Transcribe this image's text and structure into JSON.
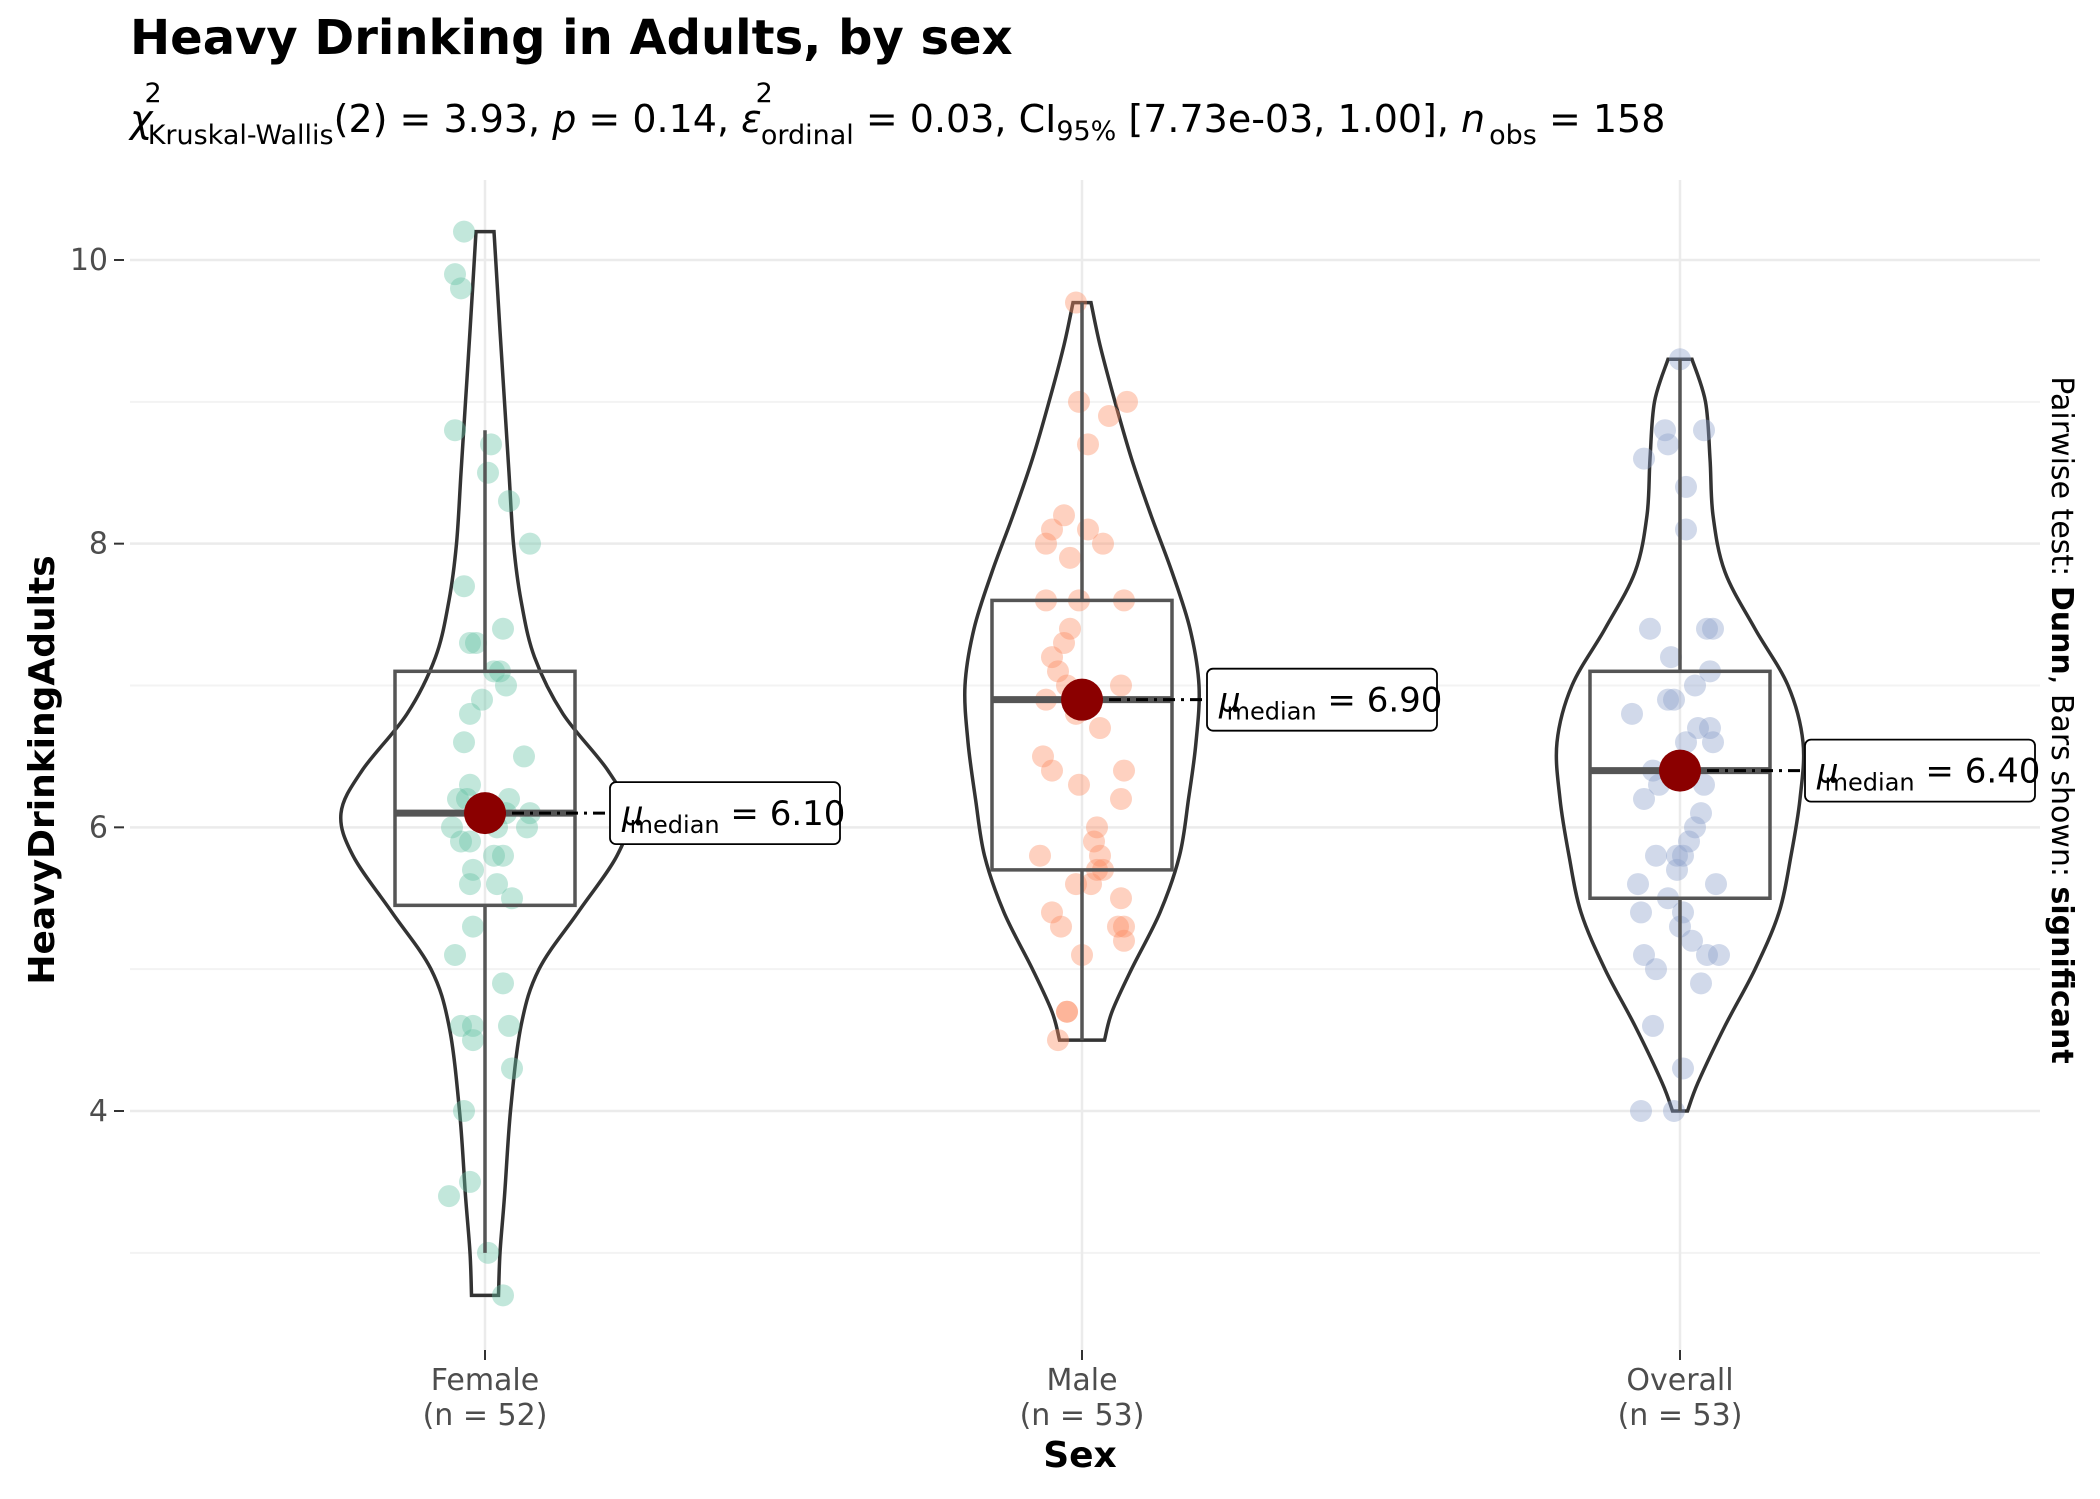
{
  "chart_data": {
    "type": "violin-box",
    "title": "Heavy Drinking in Adults, by sex",
    "subtitle": {
      "stat_symbol": "χ",
      "stat_sup": "2",
      "stat_sub": "Kruskal-Wallis",
      "stat_rest": "(2) = 3.93, ",
      "p_symbol": "p",
      "p_rest": " = 0.14, ",
      "eps_symbol": "ε",
      "eps_sup": "2",
      "eps_sub": "ordinal",
      "eps_rest": " = 0.03, CI",
      "ci_sub": "95%",
      "ci_rest": " [7.73e-03, 1.00], ",
      "n_symbol": "n",
      "n_sub": "obs",
      "n_rest": " = 158"
    },
    "xlabel": "Sex",
    "ylabel": "HeavyDrinkingAdults",
    "ylim": [
      2.45,
      10.45
    ],
    "yticks": [
      4,
      6,
      8,
      10
    ],
    "caption": {
      "prefix": "Pairwise test: ",
      "test": "Dunn",
      "middle": ", Bars shown: ",
      "bars": "significant"
    },
    "median_label_symbol": "μ",
    "median_label_sub": "median",
    "groups": [
      {
        "name": "Female",
        "n_label": "(n = 52)",
        "color": "#66c2a5",
        "median": 6.1,
        "median_text": " = 6.10",
        "q1": 5.45,
        "q3": 7.1,
        "whisker_low": 3.0,
        "whisker_high": 8.8,
        "violin_min": 2.7,
        "violin_max": 10.2,
        "violin_profile": [
          [
            2.7,
            0.09
          ],
          [
            3.0,
            0.1
          ],
          [
            3.4,
            0.13
          ],
          [
            4.0,
            0.17
          ],
          [
            4.6,
            0.24
          ],
          [
            5.0,
            0.36
          ],
          [
            5.4,
            0.62
          ],
          [
            5.8,
            0.88
          ],
          [
            6.1,
            0.96
          ],
          [
            6.4,
            0.82
          ],
          [
            6.8,
            0.52
          ],
          [
            7.2,
            0.33
          ],
          [
            7.6,
            0.24
          ],
          [
            8.0,
            0.19
          ],
          [
            8.5,
            0.16
          ],
          [
            9.0,
            0.13
          ],
          [
            9.5,
            0.1
          ],
          [
            10.2,
            0.06
          ]
        ],
        "points": [
          [
            -0.07,
            10.2
          ],
          [
            -0.1,
            9.9
          ],
          [
            -0.08,
            9.8
          ],
          [
            -0.1,
            8.8
          ],
          [
            0.02,
            8.7
          ],
          [
            0.01,
            8.5
          ],
          [
            0.08,
            8.3
          ],
          [
            0.15,
            8.0
          ],
          [
            -0.07,
            7.7
          ],
          [
            0.06,
            7.4
          ],
          [
            -0.03,
            7.3
          ],
          [
            -0.05,
            7.3
          ],
          [
            0.05,
            7.1
          ],
          [
            0.03,
            7.1
          ],
          [
            0.07,
            7.0
          ],
          [
            -0.01,
            6.9
          ],
          [
            -0.05,
            6.8
          ],
          [
            -0.07,
            6.6
          ],
          [
            0.13,
            6.5
          ],
          [
            -0.05,
            6.3
          ],
          [
            -0.09,
            6.2
          ],
          [
            -0.06,
            6.2
          ],
          [
            0.08,
            6.2
          ],
          [
            0.07,
            6.1
          ],
          [
            0.15,
            6.1
          ],
          [
            0.02,
            6.1
          ],
          [
            -0.11,
            6.0
          ],
          [
            0.04,
            6.0
          ],
          [
            0.14,
            6.0
          ],
          [
            -0.05,
            5.9
          ],
          [
            -0.08,
            5.9
          ],
          [
            0.03,
            5.8
          ],
          [
            0.06,
            5.8
          ],
          [
            -0.04,
            5.7
          ],
          [
            0.04,
            5.6
          ],
          [
            -0.05,
            5.6
          ],
          [
            0.09,
            5.5
          ],
          [
            -0.04,
            5.3
          ],
          [
            -0.1,
            5.1
          ],
          [
            0.06,
            4.9
          ],
          [
            -0.08,
            4.6
          ],
          [
            -0.04,
            4.6
          ],
          [
            0.08,
            4.6
          ],
          [
            -0.04,
            4.5
          ],
          [
            0.09,
            4.3
          ],
          [
            -0.07,
            4.0
          ],
          [
            -0.12,
            3.4
          ],
          [
            -0.05,
            3.5
          ],
          [
            0.01,
            3.0
          ],
          [
            0.06,
            2.7
          ]
        ]
      },
      {
        "name": "Male",
        "n_label": "(n = 53)",
        "color": "#fc8d62",
        "median": 6.9,
        "median_text": " = 6.90",
        "q1": 5.7,
        "q3": 7.6,
        "whisker_low": 4.5,
        "whisker_high": 9.7,
        "violin_min": 4.5,
        "violin_max": 9.7,
        "violin_profile": [
          [
            4.5,
            0.15
          ],
          [
            4.7,
            0.2
          ],
          [
            5.0,
            0.33
          ],
          [
            5.4,
            0.52
          ],
          [
            5.8,
            0.65
          ],
          [
            6.2,
            0.71
          ],
          [
            6.6,
            0.76
          ],
          [
            7.0,
            0.78
          ],
          [
            7.4,
            0.72
          ],
          [
            7.8,
            0.6
          ],
          [
            8.2,
            0.46
          ],
          [
            8.6,
            0.33
          ],
          [
            9.0,
            0.22
          ],
          [
            9.4,
            0.12
          ],
          [
            9.7,
            0.06
          ]
        ],
        "points": [
          [
            -0.02,
            9.7
          ],
          [
            -0.01,
            9.0
          ],
          [
            0.09,
            8.9
          ],
          [
            0.15,
            9.0
          ],
          [
            0.02,
            8.7
          ],
          [
            -0.06,
            8.2
          ],
          [
            -0.1,
            8.1
          ],
          [
            0.02,
            8.1
          ],
          [
            -0.12,
            8.0
          ],
          [
            0.07,
            8.0
          ],
          [
            -0.04,
            7.9
          ],
          [
            -0.12,
            7.6
          ],
          [
            -0.01,
            7.6
          ],
          [
            0.14,
            7.6
          ],
          [
            -0.04,
            7.4
          ],
          [
            -0.06,
            7.3
          ],
          [
            -0.08,
            7.1
          ],
          [
            -0.1,
            7.2
          ],
          [
            -0.05,
            7.0
          ],
          [
            0.13,
            7.0
          ],
          [
            -0.12,
            6.9
          ],
          [
            -0.02,
            6.8
          ],
          [
            0.06,
            6.7
          ],
          [
            0.14,
            6.4
          ],
          [
            -0.13,
            6.5
          ],
          [
            -0.1,
            6.4
          ],
          [
            -0.01,
            6.3
          ],
          [
            0.13,
            6.2
          ],
          [
            0.05,
            6.0
          ],
          [
            0.04,
            5.9
          ],
          [
            0.06,
            5.8
          ],
          [
            -0.14,
            5.8
          ],
          [
            0.07,
            5.7
          ],
          [
            0.05,
            5.7
          ],
          [
            -0.02,
            5.6
          ],
          [
            0.03,
            5.6
          ],
          [
            0.13,
            5.5
          ],
          [
            -0.1,
            5.4
          ],
          [
            -0.07,
            5.3
          ],
          [
            0.14,
            5.3
          ],
          [
            0.12,
            5.3
          ],
          [
            0.14,
            5.2
          ],
          [
            0.0,
            5.1
          ],
          [
            -0.05,
            4.7
          ],
          [
            -0.05,
            4.7
          ],
          [
            -0.08,
            4.5
          ]
        ]
      },
      {
        "name": "Overall",
        "n_label": "(n = 53)",
        "color": "#8da0cb",
        "median": 6.4,
        "median_text": " = 6.40",
        "q1": 5.5,
        "q3": 7.1,
        "whisker_low": 4.0,
        "whisker_high": 9.3,
        "violin_min": 4.0,
        "violin_max": 9.3,
        "violin_profile": [
          [
            4.0,
            0.05
          ],
          [
            4.2,
            0.12
          ],
          [
            4.6,
            0.3
          ],
          [
            5.0,
            0.5
          ],
          [
            5.4,
            0.66
          ],
          [
            5.8,
            0.74
          ],
          [
            6.2,
            0.8
          ],
          [
            6.6,
            0.82
          ],
          [
            7.0,
            0.72
          ],
          [
            7.4,
            0.5
          ],
          [
            7.8,
            0.3
          ],
          [
            8.2,
            0.22
          ],
          [
            8.6,
            0.2
          ],
          [
            9.0,
            0.17
          ],
          [
            9.3,
            0.08
          ]
        ],
        "points": [
          [
            0.0,
            9.3
          ],
          [
            -0.05,
            8.8
          ],
          [
            0.08,
            8.8
          ],
          [
            -0.12,
            8.6
          ],
          [
            -0.04,
            8.7
          ],
          [
            0.02,
            8.4
          ],
          [
            0.02,
            8.1
          ],
          [
            -0.1,
            7.4
          ],
          [
            0.09,
            7.4
          ],
          [
            0.11,
            7.4
          ],
          [
            -0.03,
            7.2
          ],
          [
            0.1,
            7.1
          ],
          [
            0.05,
            7.0
          ],
          [
            -0.02,
            6.9
          ],
          [
            -0.04,
            6.9
          ],
          [
            -0.16,
            6.8
          ],
          [
            0.06,
            6.7
          ],
          [
            0.02,
            6.6
          ],
          [
            0.1,
            6.7
          ],
          [
            0.11,
            6.6
          ],
          [
            -0.09,
            6.4
          ],
          [
            -0.07,
            6.3
          ],
          [
            0.08,
            6.3
          ],
          [
            -0.12,
            6.2
          ],
          [
            0.07,
            6.1
          ],
          [
            0.05,
            6.0
          ],
          [
            0.03,
            5.9
          ],
          [
            -0.01,
            5.8
          ],
          [
            0.01,
            5.8
          ],
          [
            -0.08,
            5.8
          ],
          [
            -0.01,
            5.7
          ],
          [
            0.12,
            5.6
          ],
          [
            -0.14,
            5.6
          ],
          [
            -0.04,
            5.5
          ],
          [
            0.01,
            5.4
          ],
          [
            -0.13,
            5.4
          ],
          [
            0.0,
            5.3
          ],
          [
            0.04,
            5.2
          ],
          [
            0.09,
            5.1
          ],
          [
            0.13,
            5.1
          ],
          [
            -0.12,
            5.1
          ],
          [
            -0.08,
            5.0
          ],
          [
            0.07,
            4.9
          ],
          [
            -0.09,
            4.6
          ],
          [
            0.01,
            4.3
          ],
          [
            -0.02,
            4.0
          ],
          [
            -0.13,
            4.0
          ]
        ]
      }
    ]
  }
}
